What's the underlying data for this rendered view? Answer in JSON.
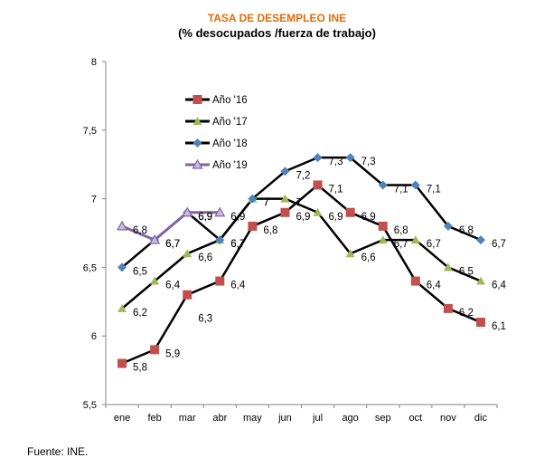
{
  "chart_data": {
    "type": "line",
    "title": "TASA DE DESEMPLEO INE",
    "subtitle": "(% desocupados /fuerza de trabajo)",
    "xlabel": "",
    "ylabel": "",
    "categories": [
      "ene",
      "feb",
      "mar",
      "abr",
      "may",
      "jun",
      "jul",
      "ago",
      "sep",
      "oct",
      "nov",
      "dic"
    ],
    "ylim": [
      5.5,
      8
    ],
    "yticks": [
      5.5,
      6,
      6.5,
      7,
      7.5,
      8
    ],
    "ytick_labels": [
      "5,5",
      "6",
      "6,5",
      "7",
      "7,5",
      "8"
    ],
    "grid": false,
    "legend_position": "top-left",
    "series": [
      {
        "name": "Año '16",
        "color": "#c0504d",
        "marker": "square",
        "values": [
          5.8,
          5.9,
          6.3,
          6.4,
          6.8,
          6.9,
          7.1,
          6.9,
          6.8,
          6.4,
          6.2,
          6.1
        ],
        "labels": [
          "5,8",
          "5,9",
          "6,3",
          "6,4",
          "6,8",
          "6,9",
          "7,1",
          "6,9",
          "6,8",
          "6,4",
          "6,2",
          "6,1"
        ]
      },
      {
        "name": "Año '17",
        "color": "#9bbb59",
        "marker": "triangle",
        "values": [
          6.2,
          6.4,
          6.6,
          6.7,
          7.0,
          7.0,
          6.9,
          6.6,
          6.7,
          6.7,
          6.5,
          6.4
        ],
        "labels": [
          "6,2",
          "6,4",
          "6,6",
          "6,7",
          "7",
          "7",
          "6,9",
          "6,6",
          "6,7",
          "6,7",
          "6,5",
          "6,4"
        ]
      },
      {
        "name": "Año '18",
        "color": "#4f81bd",
        "marker": "diamond",
        "values": [
          6.5,
          6.7,
          6.9,
          6.7,
          7.0,
          7.2,
          7.3,
          7.3,
          7.1,
          7.1,
          6.8,
          6.7
        ],
        "labels": [
          "6,5",
          "6,7",
          "6,9",
          "6,7",
          "7",
          "7,2",
          "7,3",
          "7,3",
          "7,1",
          "7,1",
          "6,8",
          "6,7"
        ]
      },
      {
        "name": "Año '19",
        "color": "#8064a2",
        "marker": "triangle-open",
        "values": [
          6.8,
          6.7,
          6.9,
          6.9
        ],
        "labels": [
          "6,8",
          "6,7",
          "6,9",
          "6,9"
        ]
      }
    ]
  },
  "footer": {
    "source": "Fuente: INE."
  }
}
